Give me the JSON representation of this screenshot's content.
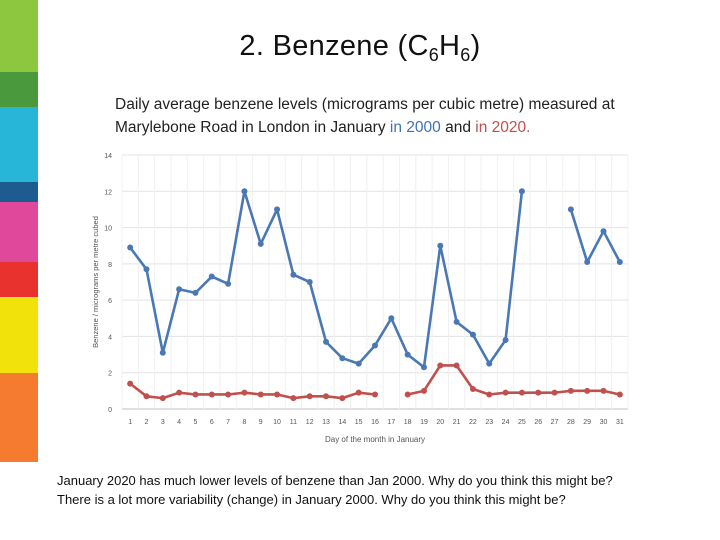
{
  "slide": {
    "title_prefix": "2. Benzene (C",
    "title_sub1": "6",
    "title_mid": "H",
    "title_sub2": "6",
    "title_suffix": ")",
    "subtitle_text": "Daily average benzene levels (micrograms per cubic metre) measured at Marylebone Road in London in January ",
    "subtitle_in1": "in",
    "subtitle_year1": "2000",
    "subtitle_and": "and",
    "subtitle_in2": "in",
    "subtitle_year2": "2020.",
    "footer_line1": "January 2020 has much lower levels of benzene than Jan 2000. Why do you think this might be?",
    "footer_line2": "There is a lot more variability (change) in January 2000. Why do you think this might be?"
  },
  "colors": {
    "series_2000": "#4a78b5",
    "series_2020": "#c0504d",
    "stripes": [
      "#8dc63f",
      "#4a9a3d",
      "#27b6d7",
      "#1d5c8f",
      "#e0499b",
      "#e8322e",
      "#f2e20b",
      "#f47b30",
      "#f47b30"
    ]
  },
  "chart_data": {
    "type": "line",
    "xlabel": "Day of the month in January",
    "ylabel": "Benzene / micrograms per metre cubed",
    "ylim": [
      0,
      14
    ],
    "yticks": [
      0,
      2,
      4,
      6,
      8,
      10,
      12,
      14
    ],
    "grid": true,
    "x": [
      1,
      2,
      3,
      4,
      5,
      6,
      7,
      8,
      9,
      10,
      11,
      12,
      13,
      14,
      15,
      16,
      17,
      18,
      19,
      20,
      21,
      22,
      23,
      24,
      25,
      26,
      27,
      28,
      29,
      30,
      31
    ],
    "series": [
      {
        "key": "2000",
        "values": [
          8.9,
          7.7,
          3.1,
          6.6,
          6.4,
          7.3,
          6.9,
          12.0,
          9.1,
          11.0,
          7.4,
          7.0,
          3.7,
          2.8,
          2.5,
          3.5,
          5.0,
          3.0,
          2.3,
          9.0,
          4.8,
          4.1,
          2.5,
          3.8,
          12.0,
          null,
          null,
          11.0,
          8.1,
          9.8,
          8.1
        ]
      },
      {
        "key": "2020",
        "values": [
          1.4,
          0.7,
          0.6,
          0.9,
          0.8,
          0.8,
          0.8,
          0.9,
          0.8,
          0.8,
          0.6,
          0.7,
          0.7,
          0.6,
          0.9,
          0.8,
          null,
          0.8,
          1.0,
          2.4,
          2.4,
          1.1,
          0.8,
          0.9,
          0.9,
          0.9,
          0.9,
          1.0,
          1.0,
          1.0,
          0.8
        ]
      }
    ]
  }
}
